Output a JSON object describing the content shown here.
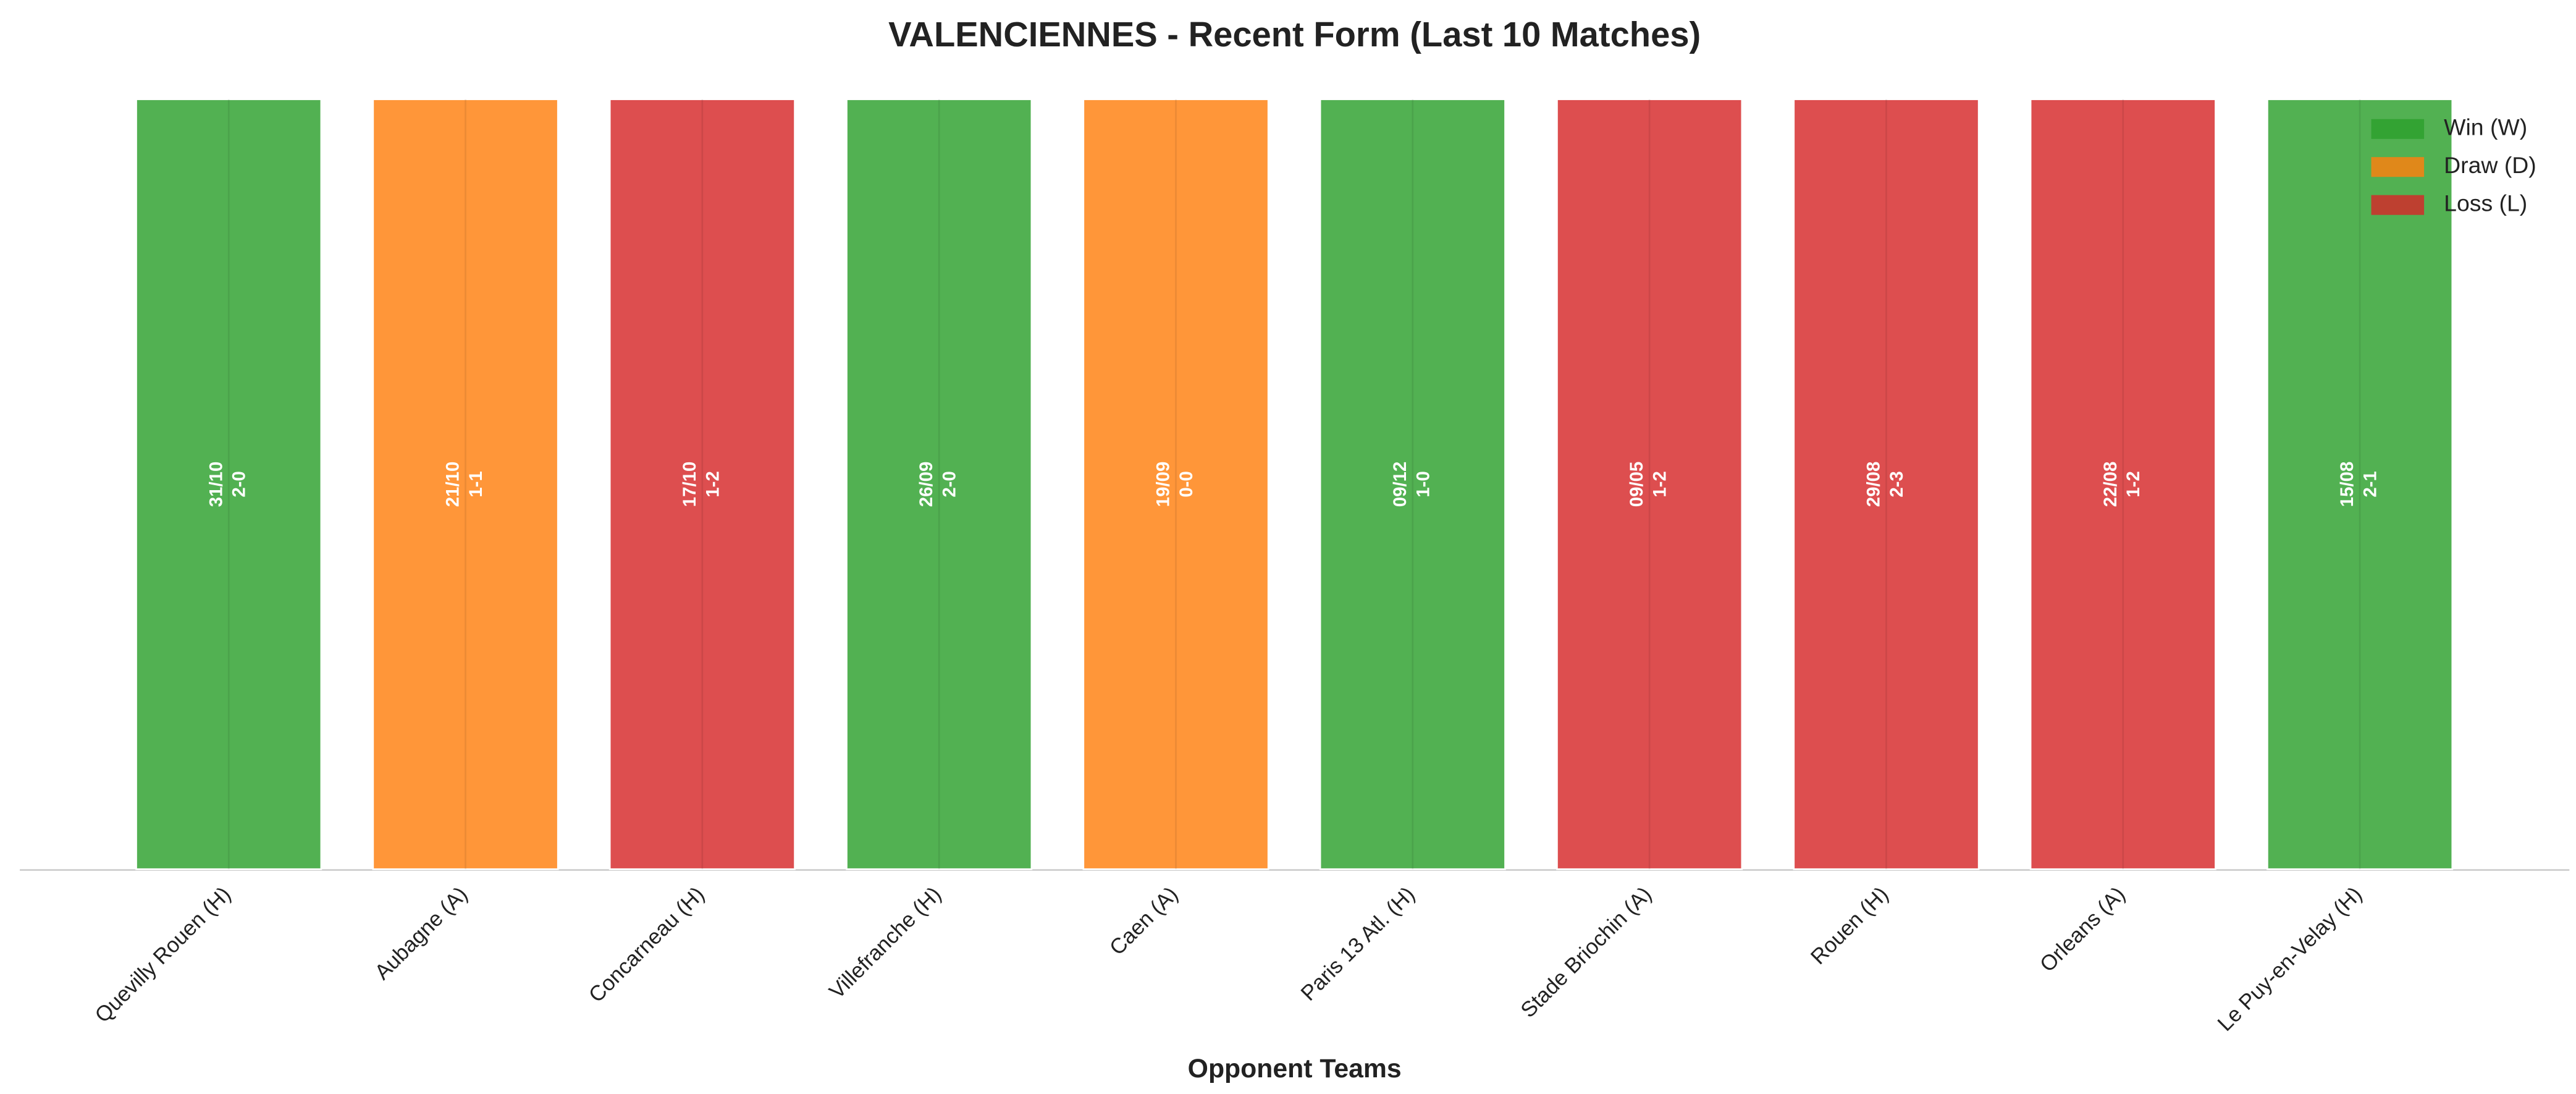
{
  "chart_data": {
    "type": "bar",
    "title": "VALENCIENNES - Recent Form (Last 10 Matches)",
    "xlabel": "Opponent Teams",
    "categories": [
      "Quevilly Rouen (H)",
      "Aubagne (A)",
      "Concarneau (H)",
      "Villefranche (H)",
      "Caen (A)",
      "Paris 13 Atl. (H)",
      "Stade Briochin (A)",
      "Rouen (H)",
      "Orleans (A)",
      "Le Puy-en-Velay (H)"
    ],
    "series": [
      {
        "name": "Win (W)",
        "color": "#2ca02c",
        "values": [
          1,
          null,
          null,
          1,
          null,
          1,
          null,
          null,
          null,
          1
        ]
      },
      {
        "name": "Draw (D)",
        "color": "#ff7f0e",
        "values": [
          null,
          1,
          null,
          null,
          1,
          null,
          null,
          null,
          null,
          null
        ]
      },
      {
        "name": "Loss (L)",
        "color": "#d62728",
        "values": [
          null,
          null,
          1,
          null,
          null,
          null,
          1,
          1,
          1,
          null
        ]
      }
    ],
    "annotations": [
      {
        "date": "31/10",
        "score": "2-0"
      },
      {
        "date": "21/10",
        "score": "1-1"
      },
      {
        "date": "17/10",
        "score": "1-2"
      },
      {
        "date": "26/09",
        "score": "2-0"
      },
      {
        "date": "19/09",
        "score": "0-0"
      },
      {
        "date": "09/12",
        "score": "1-0"
      },
      {
        "date": "09/05",
        "score": "1-2"
      },
      {
        "date": "29/08",
        "score": "2-3"
      },
      {
        "date": "22/08",
        "score": "1-2"
      },
      {
        "date": "15/08",
        "score": "2-1"
      }
    ],
    "ylim": [
      0,
      1
    ],
    "grid": true,
    "legend": "upper right"
  }
}
